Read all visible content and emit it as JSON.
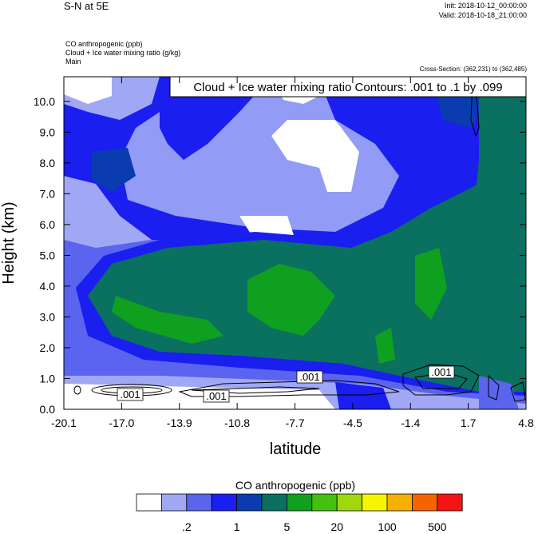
{
  "header": {
    "title": "S-N at 5E",
    "init": "Init: 2018-10-12_00:00:00",
    "valid": "Valid: 2018-10-18_21:00:00",
    "field1": "CO anthropogenic   (ppb)",
    "field2": "Cloud + Ice water mixing ratio   (g/kg)",
    "field3": "Main",
    "cross_section": "Cross-Section: (362,231) to (362,485)"
  },
  "chart_data": {
    "type": "heatmap",
    "subtype": "vertical cross-section with contour overlay",
    "contour_label": "Cloud + Ice water mixing ratio Contours: .001 to .1 by .099",
    "xlabel": "latitude",
    "ylabel": "Height (km)",
    "xlim": [
      -20.1,
      4.8
    ],
    "ylim": [
      0,
      10.8
    ],
    "x_ticks": [
      "-20.1",
      "-17.0",
      "-13.9",
      "-10.8",
      "-7.7",
      "-4.5",
      "-1.4",
      "1.7",
      "4.8"
    ],
    "y_ticks": [
      "0.0",
      "1.0",
      "2.0",
      "3.0",
      "4.0",
      "5.0",
      "6.0",
      "7.0",
      "8.0",
      "9.0",
      "10.0"
    ],
    "contour_value_labels": [
      ".001",
      ".001",
      ".001",
      ".001"
    ],
    "colorbar": {
      "title": "CO anthropogenic  (ppb)",
      "colors": [
        "#ffffff",
        "#a0a8f5",
        "#5a64ee",
        "#1a1eef",
        "#0a3cb0",
        "#0a7060",
        "#10a020",
        "#44c010",
        "#a0d810",
        "#f5f500",
        "#f5b000",
        "#f56400",
        "#f51414"
      ],
      "labels": [
        ".2",
        "1",
        "5",
        "20",
        "100",
        "500"
      ]
    }
  }
}
